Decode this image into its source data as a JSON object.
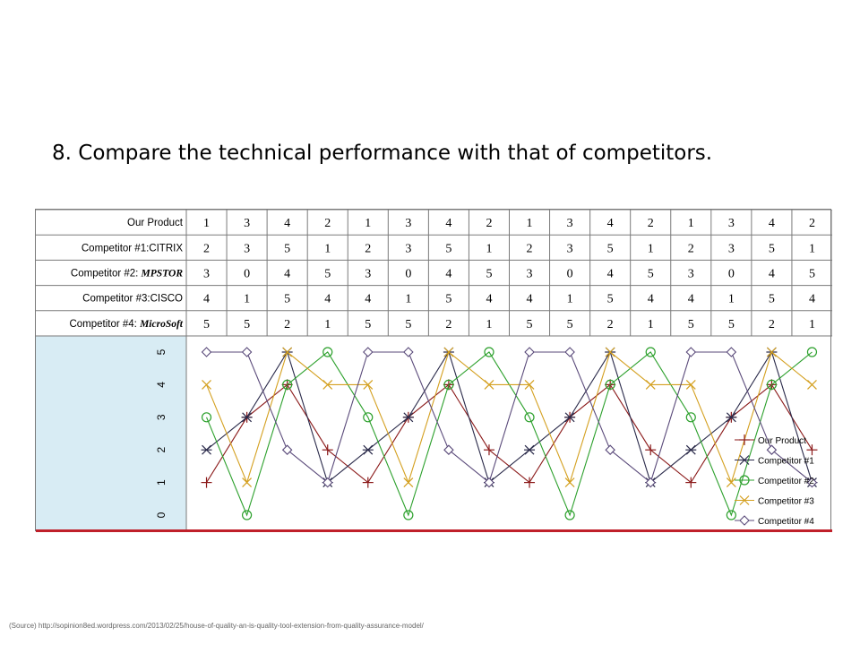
{
  "slide": {
    "title": "8. Compare the technical performance with that of competitors.",
    "source": "(Source) http://sopinion8ed.wordpress.com/2013/02/25/house-of-quality-an-is-quality-tool-extension-from-quality-assurance-model/"
  },
  "chart_data": {
    "type": "line",
    "x": [
      1,
      2,
      3,
      4,
      5,
      6,
      7,
      8,
      9,
      10,
      11,
      12,
      13,
      14,
      15,
      16
    ],
    "ylim": [
      0,
      5
    ],
    "yticks": [
      "0",
      "1",
      "2",
      "3",
      "4",
      "5"
    ],
    "grid": false,
    "legend_position": "bottom-right",
    "table_rows": [
      {
        "label": "Our Product",
        "label_rest": "",
        "values": [
          1,
          3,
          4,
          2,
          1,
          3,
          4,
          2,
          1,
          3,
          4,
          2,
          1,
          3,
          4,
          2
        ]
      },
      {
        "label": "Competitor #1:CITRIX",
        "label_rest": "",
        "values": [
          2,
          3,
          5,
          1,
          2,
          3,
          5,
          1,
          2,
          3,
          5,
          1,
          2,
          3,
          5,
          1
        ]
      },
      {
        "label": "Competitor #2: ",
        "label_rest": "MPSTOR",
        "values": [
          3,
          0,
          4,
          5,
          3,
          0,
          4,
          5,
          3,
          0,
          4,
          5,
          3,
          0,
          4,
          5
        ]
      },
      {
        "label": "Competitor #3:CISCO",
        "label_rest": "",
        "values": [
          4,
          1,
          5,
          4,
          4,
          1,
          5,
          4,
          4,
          1,
          5,
          4,
          4,
          1,
          5,
          4
        ]
      },
      {
        "label": "Competitor #4: ",
        "label_rest": "MicroSoft",
        "values": [
          5,
          5,
          2,
          1,
          5,
          5,
          2,
          1,
          5,
          5,
          2,
          1,
          5,
          5,
          2,
          1
        ]
      }
    ],
    "series": [
      {
        "name": "Our Product",
        "marker": "plus",
        "color": "#8b1a1a",
        "values": [
          1,
          3,
          4,
          2,
          1,
          3,
          4,
          2,
          1,
          3,
          4,
          2,
          1,
          3,
          4,
          2
        ]
      },
      {
        "name": "Competitor #1",
        "marker": "star",
        "color": "#2a2a4a",
        "values": [
          2,
          3,
          5,
          1,
          2,
          3,
          5,
          1,
          2,
          3,
          5,
          1,
          2,
          3,
          5,
          1
        ]
      },
      {
        "name": "Competitor #2",
        "marker": "circle",
        "color": "#2ca02c",
        "values": [
          3,
          0,
          4,
          5,
          3,
          0,
          4,
          5,
          3,
          0,
          4,
          5,
          3,
          0,
          4,
          5
        ]
      },
      {
        "name": "Competitor #3",
        "marker": "x",
        "color": "#d4a020",
        "values": [
          4,
          1,
          5,
          4,
          4,
          1,
          5,
          4,
          4,
          1,
          5,
          4,
          4,
          1,
          5,
          4
        ]
      },
      {
        "name": "Competitor #4",
        "marker": "diamond",
        "color": "#5a4a7a",
        "values": [
          5,
          5,
          2,
          1,
          5,
          5,
          2,
          1,
          5,
          5,
          2,
          1,
          5,
          5,
          2,
          1
        ]
      }
    ],
    "colors": {
      "axis_panel": "#d8ecf4",
      "grid_line": "#7a7a7a",
      "bottom_rule": "#c0202a"
    }
  }
}
